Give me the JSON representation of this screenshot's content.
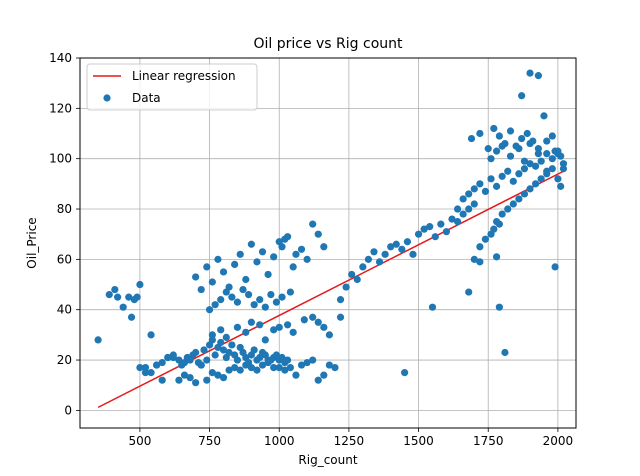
{
  "chart_data": {
    "type": "scatter",
    "title": "Oil price vs Rig count",
    "xlabel": "Rig_count",
    "ylabel": "Oil_Price",
    "xlim": [
      285,
      2065
    ],
    "ylim": [
      -7,
      140
    ],
    "xticks": [
      500,
      750,
      1000,
      1250,
      1500,
      1750,
      2000
    ],
    "yticks": [
      0,
      20,
      40,
      60,
      80,
      100,
      120,
      140
    ],
    "grid": true,
    "legend_position": "top-left",
    "colors": {
      "data": "#1f77b4",
      "regression": "#e41a1c"
    },
    "series": [
      {
        "name": "Linear regression",
        "kind": "line",
        "x": [
          350,
          2020
        ],
        "y": [
          1.2,
          95
        ]
      },
      {
        "name": "Data",
        "kind": "scatter",
        "x": [
          350,
          390,
          410,
          420,
          440,
          460,
          470,
          490,
          500,
          520,
          540,
          560,
          580,
          600,
          620,
          640,
          660,
          680,
          700,
          720,
          740,
          760,
          780,
          800,
          820,
          840,
          860,
          880,
          900,
          920,
          940,
          960,
          980,
          1000,
          1020,
          1040,
          1060,
          1080,
          1100,
          1120,
          1140,
          1160,
          1180,
          1200,
          480,
          500,
          520,
          540,
          560,
          580,
          600,
          620,
          640,
          650,
          660,
          670,
          680,
          690,
          700,
          710,
          720,
          730,
          740,
          750,
          760,
          770,
          780,
          790,
          800,
          810,
          820,
          830,
          840,
          850,
          860,
          870,
          880,
          890,
          900,
          910,
          920,
          930,
          940,
          950,
          960,
          970,
          980,
          990,
          1000,
          1010,
          1020,
          1030,
          700,
          720,
          740,
          760,
          780,
          800,
          820,
          840,
          860,
          880,
          900,
          920,
          940,
          960,
          980,
          1000,
          1010,
          1020,
          1030,
          1050,
          1060,
          1080,
          1100,
          1120,
          1140,
          1160,
          750,
          770,
          790,
          810,
          830,
          850,
          870,
          890,
          910,
          930,
          950,
          970,
          990,
          1010,
          1040,
          760,
          790,
          810,
          850,
          880,
          900,
          930,
          950,
          980,
          1000,
          1030,
          1050,
          1090,
          1120,
          1140,
          1160,
          1180,
          1220,
          1220,
          1240,
          1260,
          1280,
          1300,
          1320,
          1340,
          1360,
          1380,
          1400,
          1420,
          1440,
          1460,
          1480,
          1500,
          1520,
          1540,
          1560,
          1580,
          1600,
          1620,
          1640,
          1660,
          1680,
          1700,
          1450,
          1550,
          1810,
          1680,
          1790,
          1640,
          1660,
          1680,
          1700,
          1720,
          1740,
          1760,
          1780,
          1800,
          1820,
          1840,
          1860,
          1880,
          1900,
          1920,
          1940,
          1960,
          1980,
          2000,
          2020,
          1700,
          1720,
          1740,
          1760,
          1770,
          1780,
          1790,
          1800,
          1820,
          1840,
          1860,
          1880,
          1900,
          1920,
          1940,
          1960,
          1980,
          2000,
          2010,
          1760,
          1780,
          1800,
          1830,
          1860,
          1880,
          1900,
          1930,
          1960,
          1990,
          2010,
          1690,
          1720,
          1750,
          1770,
          1790,
          1810,
          1830,
          1850,
          1870,
          1890,
          1910,
          1930,
          1960,
          1980,
          2000,
          2020,
          1870,
          1900,
          1930,
          1950,
          1990,
          1720,
          1780
        ],
        "y": [
          28,
          46,
          48,
          45,
          41,
          45,
          37,
          45,
          17,
          15,
          30,
          18,
          12,
          21,
          21,
          12,
          14,
          13,
          11,
          18,
          12,
          15,
          14,
          13,
          16,
          17,
          16,
          18,
          17,
          16,
          18,
          20,
          17,
          17,
          16,
          17,
          14,
          18,
          19,
          20,
          12,
          14,
          18,
          17,
          44,
          50,
          17,
          15,
          18,
          19,
          21,
          22,
          20,
          18,
          19,
          21,
          20,
          22,
          23,
          19,
          18,
          24,
          20,
          26,
          28,
          22,
          25,
          27,
          24,
          21,
          23,
          26,
          22,
          20,
          25,
          23,
          21,
          19,
          22,
          24,
          20,
          21,
          23,
          22,
          19,
          20,
          21,
          22,
          20,
          21,
          19,
          20,
          53,
          48,
          57,
          51,
          60,
          55,
          49,
          58,
          62,
          52,
          66,
          59,
          63,
          54,
          61,
          67,
          65,
          68,
          69,
          57,
          62,
          64,
          60,
          74,
          70,
          65,
          40,
          42,
          44,
          47,
          45,
          43,
          48,
          46,
          42,
          44,
          41,
          46,
          43,
          45,
          47,
          30,
          32,
          29,
          33,
          31,
          35,
          34,
          28,
          32,
          33,
          34,
          31,
          36,
          37,
          35,
          33,
          30,
          37,
          44,
          49,
          54,
          52,
          57,
          60,
          63,
          59,
          62,
          65,
          66,
          64,
          67,
          62,
          70,
          72,
          73,
          69,
          74,
          71,
          76,
          75,
          78,
          80,
          82,
          15,
          41,
          23,
          47,
          41,
          80,
          84,
          86,
          88,
          90,
          87,
          92,
          89,
          93,
          95,
          91,
          94,
          96,
          98,
          97,
          99,
          95,
          100,
          102,
          98,
          60,
          65,
          68,
          70,
          72,
          75,
          74,
          78,
          80,
          82,
          84,
          86,
          88,
          90,
          92,
          94,
          96,
          92,
          89,
          100,
          103,
          105,
          101,
          104,
          99,
          106,
          102,
          107,
          103,
          101,
          108,
          110,
          104,
          112,
          109,
          106,
          111,
          105,
          108,
          110,
          107,
          104,
          102,
          109,
          103,
          96,
          125,
          134,
          133,
          117,
          57,
          59,
          61
        ]
      }
    ]
  }
}
